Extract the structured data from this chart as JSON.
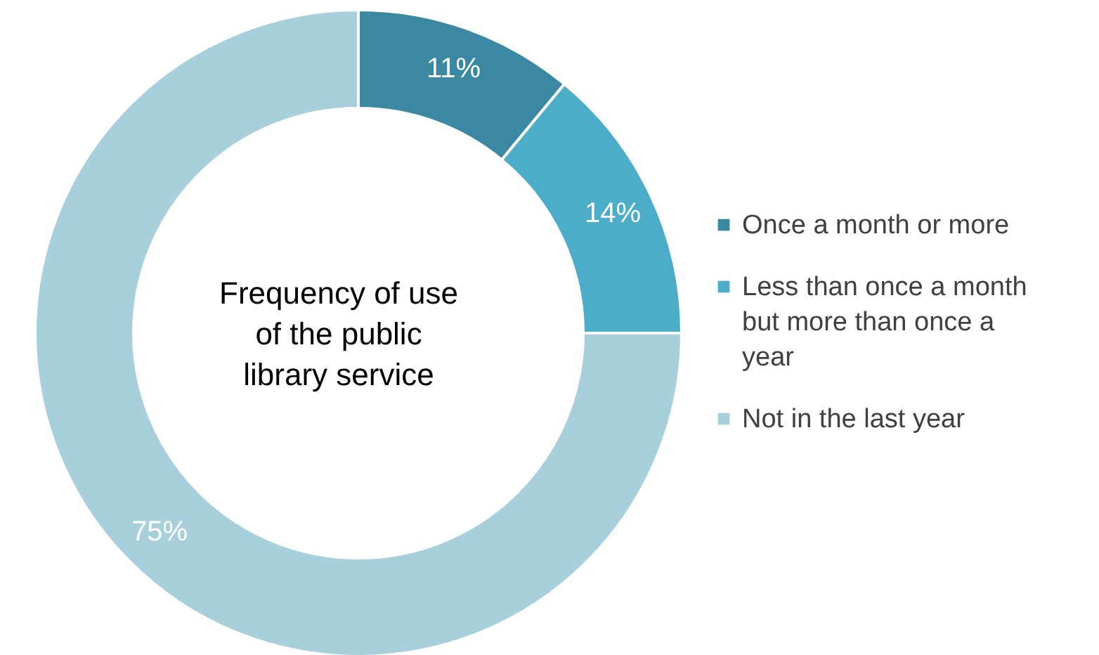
{
  "chart_data": {
    "type": "donut",
    "title": "Frequency of use of the public library service",
    "categories": [
      "Once a month or more",
      "Less than once a month but more than once a year",
      "Not in the last year"
    ],
    "values": [
      11,
      14,
      75
    ],
    "colors": [
      "#3a88a1",
      "#4badc7",
      "#a8cfdc"
    ],
    "value_labels": [
      "11%",
      "14%",
      "75%"
    ],
    "legend": "right"
  }
}
